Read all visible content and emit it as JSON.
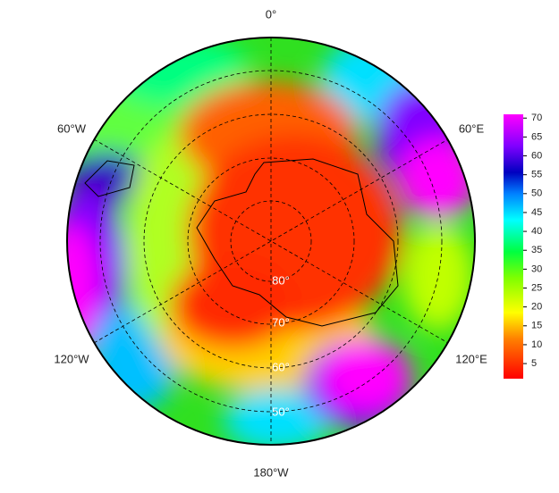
{
  "map": {
    "longitude_labels": [
      "0°",
      "60°E",
      "120°E",
      "180°W",
      "120°W",
      "60°W"
    ],
    "latitude_labels": [
      "80°",
      "70°",
      "60°",
      "50°"
    ],
    "colorbar": {
      "range": [
        1,
        71
      ],
      "ticks": [
        5,
        10,
        15,
        20,
        25,
        30,
        35,
        40,
        45,
        50,
        55,
        60,
        65,
        70
      ]
    }
  }
}
